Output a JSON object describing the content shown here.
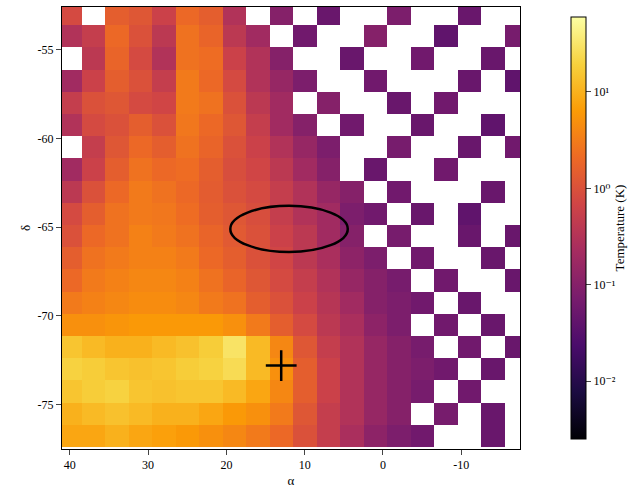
{
  "chart_data": {
    "type": "heatmap",
    "x_label": "α",
    "y_label": "δ",
    "x": [
      40,
      37,
      34,
      31,
      28,
      25,
      22,
      19,
      16,
      13,
      10,
      7,
      4,
      1,
      -2,
      -5,
      -8,
      -11,
      -14,
      -17
    ],
    "y": [
      -53,
      -54.25,
      -55.5,
      -56.75,
      -58,
      -59.25,
      -60.5,
      -61.75,
      -63,
      -64.25,
      -65.5,
      -66.75,
      -68,
      -69.25,
      -70.5,
      -71.75,
      -73,
      -74.25,
      -75.5,
      -76.75
    ],
    "z": [
      [
        0.8,
        null,
        1.5,
        1.2,
        0.6,
        2.0,
        1.5,
        0.3,
        null,
        0.1,
        null,
        0.05,
        null,
        null,
        0.08,
        null,
        null,
        0.05,
        null,
        null
      ],
      [
        0.3,
        0.5,
        2.0,
        1.0,
        0.4,
        2.5,
        1.8,
        0.4,
        0.2,
        null,
        0.06,
        null,
        null,
        0.1,
        null,
        null,
        0.04,
        null,
        null,
        0.07
      ],
      [
        null,
        0.4,
        1.8,
        0.8,
        0.3,
        2.5,
        2.2,
        0.6,
        0.3,
        0.1,
        null,
        null,
        0.05,
        null,
        null,
        0.06,
        null,
        null,
        0.05,
        null
      ],
      [
        0.2,
        0.6,
        1.5,
        1.0,
        0.5,
        3.0,
        2.0,
        0.8,
        0.3,
        0.15,
        0.08,
        null,
        null,
        0.06,
        null,
        null,
        null,
        0.05,
        null,
        0.04
      ],
      [
        0.5,
        1.0,
        1.2,
        0.8,
        0.7,
        3.0,
        2.5,
        1.0,
        0.4,
        0.2,
        null,
        0.1,
        null,
        null,
        0.05,
        null,
        0.06,
        null,
        null,
        null
      ],
      [
        0.3,
        0.8,
        1.0,
        1.5,
        1.0,
        2.8,
        2.0,
        1.2,
        0.5,
        0.2,
        0.1,
        null,
        0.06,
        null,
        null,
        0.05,
        null,
        null,
        0.04,
        null
      ],
      [
        null,
        0.5,
        1.2,
        2.0,
        1.5,
        2.5,
        1.8,
        1.0,
        0.6,
        0.3,
        0.15,
        0.08,
        null,
        null,
        0.07,
        null,
        null,
        0.05,
        null,
        0.06
      ],
      [
        0.2,
        0.6,
        1.5,
        2.5,
        2.0,
        2.2,
        1.5,
        0.9,
        0.7,
        0.4,
        0.2,
        0.1,
        null,
        0.05,
        null,
        null,
        0.06,
        null,
        null,
        null
      ],
      [
        0.4,
        1.0,
        2.0,
        3.0,
        2.5,
        2.0,
        1.4,
        1.0,
        0.8,
        0.5,
        0.3,
        0.15,
        0.1,
        null,
        0.06,
        null,
        null,
        null,
        0.05,
        null
      ],
      [
        0.8,
        1.5,
        2.5,
        3.0,
        2.8,
        2.2,
        1.5,
        1.2,
        0.9,
        0.5,
        0.3,
        0.2,
        0.08,
        0.06,
        null,
        0.05,
        null,
        0.04,
        null,
        null
      ],
      [
        1.0,
        2.0,
        2.5,
        3.5,
        3.0,
        2.5,
        1.8,
        1.3,
        1.0,
        0.6,
        0.4,
        0.2,
        0.1,
        null,
        0.07,
        null,
        null,
        0.05,
        null,
        0.05
      ],
      [
        1.5,
        2.5,
        3.0,
        3.5,
        3.5,
        3.0,
        2.0,
        1.5,
        1.0,
        0.7,
        0.4,
        0.25,
        0.12,
        0.08,
        null,
        0.06,
        null,
        null,
        0.05,
        null
      ],
      [
        2.0,
        3.0,
        3.5,
        4.0,
        4.0,
        3.5,
        2.5,
        1.8,
        1.2,
        0.8,
        0.5,
        0.3,
        0.15,
        0.1,
        0.07,
        null,
        0.06,
        null,
        null,
        0.05
      ],
      [
        3.0,
        3.5,
        4.0,
        4.5,
        4.5,
        4.0,
        3.0,
        2.5,
        1.5,
        1.0,
        0.6,
        0.35,
        0.2,
        0.1,
        0.08,
        0.06,
        null,
        0.05,
        null,
        null
      ],
      [
        5.0,
        5.0,
        5.5,
        6.0,
        6.0,
        6.0,
        6.0,
        5.0,
        3.0,
        1.5,
        0.8,
        0.4,
        0.25,
        0.12,
        0.08,
        null,
        0.06,
        null,
        0.05,
        null
      ],
      [
        15,
        12,
        10,
        10,
        12,
        14,
        18,
        30,
        12,
        4.0,
        1.2,
        0.5,
        0.3,
        0.15,
        0.1,
        0.07,
        null,
        0.06,
        null,
        0.05
      ],
      [
        20,
        18,
        15,
        14,
        15,
        18,
        20,
        25,
        12,
        5.0,
        1.5,
        0.6,
        0.3,
        0.15,
        0.1,
        0.08,
        0.06,
        null,
        0.05,
        null
      ],
      [
        15,
        18,
        20,
        15,
        14,
        15,
        15,
        12,
        8.0,
        4.0,
        1.5,
        0.6,
        0.3,
        0.15,
        0.1,
        0.07,
        null,
        0.06,
        null,
        null
      ],
      [
        10,
        12,
        14,
        12,
        10,
        10,
        8.0,
        6.0,
        5.0,
        3.0,
        1.2,
        0.5,
        0.3,
        0.15,
        0.1,
        null,
        0.07,
        null,
        0.05,
        null
      ],
      [
        8.0,
        8.0,
        10,
        8.0,
        7.0,
        6.0,
        5.0,
        4.0,
        3.0,
        2.0,
        1.0,
        0.5,
        0.25,
        0.12,
        0.08,
        0.06,
        null,
        null,
        0.05,
        null
      ]
    ],
    "xlim": [
      41,
      -17.5
    ],
    "ylim": [
      -77.5,
      -52.6
    ],
    "xticks": [
      40,
      30,
      20,
      10,
      0,
      -10
    ],
    "yticks": [
      -55,
      -60,
      -65,
      -70,
      -75
    ],
    "color": "inferno",
    "colorbar": {
      "title": "Temperature (K)",
      "log": true,
      "range": [
        0.0025,
        60
      ],
      "ticks": [
        {
          "value": 0.01,
          "label": "10⁻²"
        },
        {
          "value": 0.1,
          "label": "10⁻¹"
        },
        {
          "value": 1,
          "label": "10⁰"
        },
        {
          "value": 10,
          "label": "10¹"
        }
      ]
    },
    "ellipse": {
      "x": [
        4.5,
        19.5
      ],
      "y": [
        -66.4,
        -63.8
      ]
    },
    "point": {
      "x": 13,
      "y": -72.8,
      "marker": "cross"
    }
  }
}
